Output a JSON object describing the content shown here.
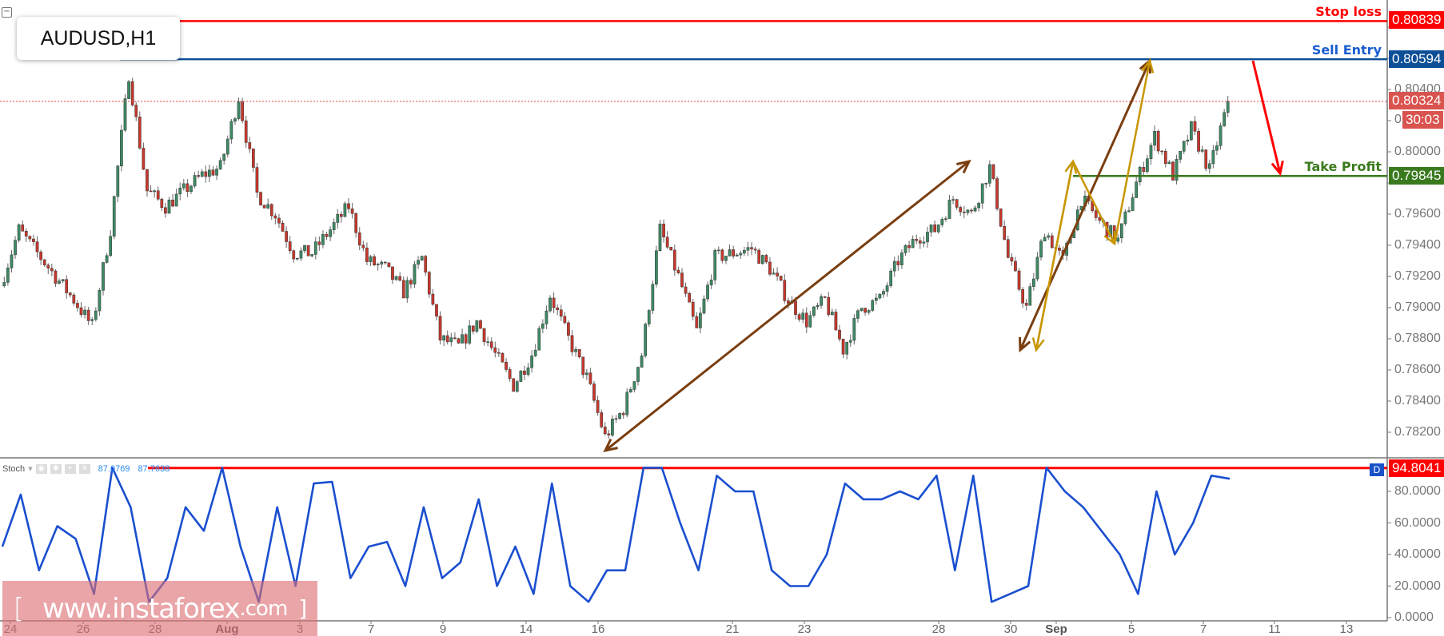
{
  "chart_data": {
    "type": "candlestick",
    "symbol": "AUDUSD,H1",
    "price_axis_ticks": [
      "0.80800",
      "0.80600",
      "0.80400",
      "0.80200",
      "0.80000",
      "0.79800",
      "0.79600",
      "0.79400",
      "0.79200",
      "0.79000",
      "0.78800",
      "0.78600",
      "0.78400",
      "0.78200"
    ],
    "price_axis_visible_labels": [
      "0.80400",
      "0.80000",
      "0.79600",
      "0.79400",
      "0.79200",
      "0.79000",
      "0.78800",
      "0.78600",
      "0.78400",
      "0.78200"
    ],
    "partial_tick_label": "0.",
    "ylim": [
      0.7806,
      0.8097
    ],
    "date_labels": [
      {
        "label": "24",
        "bold": false
      },
      {
        "label": "26",
        "bold": false
      },
      {
        "label": "28",
        "bold": false
      },
      {
        "label": "Aug",
        "bold": true
      },
      {
        "label": "3",
        "bold": false
      },
      {
        "label": "7",
        "bold": false
      },
      {
        "label": "9",
        "bold": false
      },
      {
        "label": "14",
        "bold": false
      },
      {
        "label": "16",
        "bold": false
      },
      {
        "label": "21",
        "bold": false
      },
      {
        "label": "23",
        "bold": false
      },
      {
        "label": "28",
        "bold": false
      },
      {
        "label": "30",
        "bold": false
      },
      {
        "label": "Sep",
        "bold": true
      },
      {
        "label": "5",
        "bold": false
      },
      {
        "label": "7",
        "bold": false
      },
      {
        "label": "11",
        "bold": false
      },
      {
        "label": "13",
        "bold": false
      }
    ],
    "approx_close_path": [
      0.7914,
      0.795,
      0.7935,
      0.792,
      0.7905,
      0.7888,
      0.795,
      0.805,
      0.7975,
      0.7965,
      0.7975,
      0.7985,
      0.799,
      0.8035,
      0.7973,
      0.796,
      0.7935,
      0.7935,
      0.795,
      0.7965,
      0.793,
      0.7925,
      0.791,
      0.7932,
      0.788,
      0.7875,
      0.7891,
      0.787,
      0.785,
      0.787,
      0.7908,
      0.788,
      0.7855,
      0.7817,
      0.7835,
      0.787,
      0.795,
      0.792,
      0.7885,
      0.7932,
      0.7935,
      0.7938,
      0.7925,
      0.7905,
      0.7891,
      0.7905,
      0.7873,
      0.79,
      0.7905,
      0.793,
      0.7945,
      0.795,
      0.797,
      0.796,
      0.799,
      0.7932,
      0.79,
      0.795,
      0.793,
      0.797,
      0.7955,
      0.7943,
      0.798,
      0.801,
      0.7985,
      0.8015,
      0.7988,
      0.8032
    ],
    "levels": [
      {
        "name": "Stop loss",
        "price": 0.80839,
        "label": "0.80839",
        "color": "#ff0000"
      },
      {
        "name": "Sell Entry",
        "price": 0.80594,
        "label": "0.80594",
        "color": "#0d4f96"
      },
      {
        "name": "Take Profit",
        "price": 0.79845,
        "label": "0.79845",
        "color": "#3a7a1e"
      }
    ],
    "current_price": {
      "price": 0.80324,
      "label": "0.80324",
      "countdown": "30:03",
      "color": "#d9534f"
    },
    "colors": {
      "up": "#3d8a63",
      "down": "#c8382c",
      "wick": "#555555",
      "brown_arrow": "#7a3e10",
      "gold_arrow": "#c89600",
      "red_arrow": "#ff0000"
    },
    "stochastic": {
      "name": "Stoch",
      "value1": "87.0769",
      "value2": "87.7638",
      "level_label": "94.8041",
      "level": 94.8041,
      "badge": "D",
      "ylim": [
        0,
        100
      ],
      "ticks": [
        "80.0000",
        "60.0000",
        "40.0000",
        "20.0000",
        "0.0000"
      ],
      "line_color": "#1a4fcf",
      "values": [
        45,
        78,
        30,
        58,
        50,
        15,
        95,
        70,
        10,
        25,
        70,
        55,
        95,
        45,
        10,
        70,
        20,
        85,
        86,
        25,
        45,
        48,
        20,
        70,
        25,
        35,
        75,
        20,
        45,
        15,
        85,
        20,
        10,
        30,
        30,
        95,
        95,
        60,
        30,
        90,
        80,
        80,
        30,
        20,
        20,
        40,
        85,
        75,
        75,
        80,
        75,
        90,
        30,
        90,
        10,
        15,
        20,
        95,
        80,
        70,
        55,
        40,
        15,
        80,
        40,
        60,
        90,
        88
      ]
    }
  },
  "watermark": {
    "open": "[",
    "text": "www.instaforex",
    "suffix": ".com",
    "close": "]"
  }
}
